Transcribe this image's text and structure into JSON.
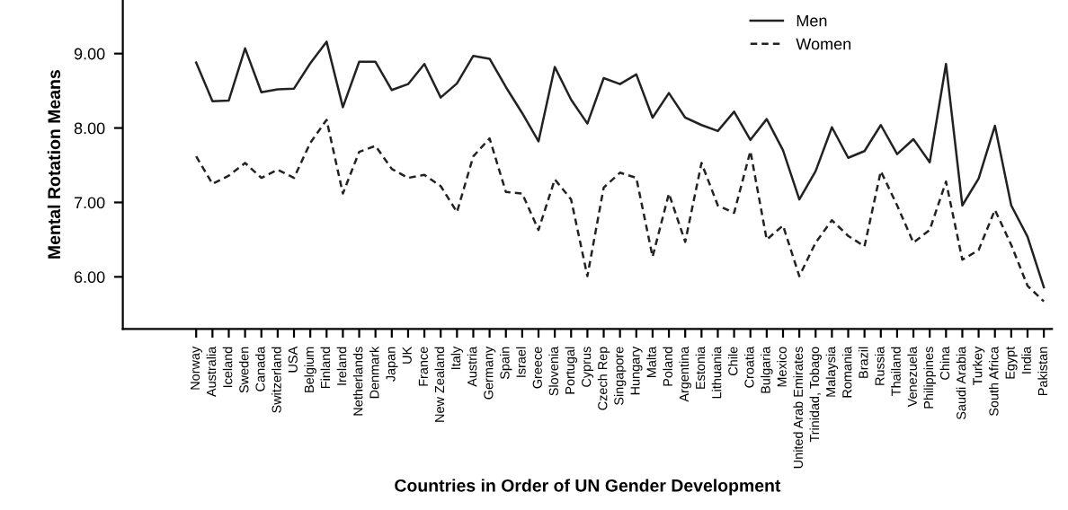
{
  "chart_data": {
    "type": "line",
    "xlabel": "Countries in Order of UN Gender Development",
    "ylabel": "Mental Rotation Means",
    "categories": [
      "Norway",
      "Australia",
      "Iceland",
      "Sweden",
      "Canada",
      "Switzerland",
      "USA",
      "Belgium",
      "Finland",
      "Ireland",
      "Netherlands",
      "Denmark",
      "Japan",
      "UK",
      "France",
      "New Zealand",
      "Italy",
      "Austria",
      "Germany",
      "Spain",
      "Israel",
      "Greece",
      "Slovenia",
      "Portugal",
      "Cyprus",
      "Czech Rep",
      "Singapore",
      "Hungary",
      "Malta",
      "Poland",
      "Argentina",
      "Estonia",
      "Lithuania",
      "Chile",
      "Croatia",
      "Bulgaria",
      "Mexico",
      "United Arab Emirates",
      "Trinidad, Tobago",
      "Malaysia",
      "Romania",
      "Brazil",
      "Russia",
      "Thailand",
      "Venezuela",
      "Philippines",
      "China",
      "Saudi Arabia",
      "Turkey",
      "South Africa",
      "Egypt",
      "India",
      "Pakistan"
    ],
    "series": [
      {
        "name": "Men",
        "color": "#222222",
        "line_style": "solid",
        "values": [
          8.88,
          8.36,
          8.37,
          9.07,
          8.48,
          8.52,
          8.53,
          8.87,
          9.16,
          8.28,
          8.89,
          8.89,
          8.51,
          8.59,
          8.86,
          8.41,
          8.6,
          8.97,
          8.93,
          8.55,
          8.2,
          7.82,
          8.82,
          8.38,
          8.06,
          8.67,
          8.59,
          8.72,
          8.14,
          8.47,
          8.14,
          8.04,
          7.96,
          8.22,
          7.84,
          8.12,
          7.7,
          7.04,
          7.42,
          8.01,
          7.6,
          7.69,
          8.04,
          7.65,
          7.85,
          7.54,
          8.86,
          6.96,
          7.32,
          8.03,
          6.96,
          6.54,
          5.86
        ]
      },
      {
        "name": "Women",
        "color": "#222222",
        "line_style": "dashed",
        "values": [
          7.62,
          7.25,
          7.36,
          7.53,
          7.33,
          7.44,
          7.33,
          7.8,
          8.11,
          7.12,
          7.68,
          7.76,
          7.45,
          7.33,
          7.37,
          7.22,
          6.87,
          7.62,
          7.86,
          7.14,
          7.12,
          6.63,
          7.31,
          7.04,
          6.01,
          7.2,
          7.4,
          7.33,
          6.27,
          7.12,
          6.47,
          7.53,
          6.96,
          6.86,
          7.69,
          6.5,
          6.69,
          6.01,
          6.46,
          6.76,
          6.55,
          6.41,
          7.42,
          6.96,
          6.46,
          6.63,
          7.28,
          6.23,
          6.36,
          6.9,
          6.43,
          5.88,
          5.67
        ]
      }
    ],
    "ylim": [
      5.3,
      9.72
    ],
    "yticks": [
      {
        "value": 6,
        "label": "6.00"
      },
      {
        "value": 7,
        "label": "7.00"
      },
      {
        "value": 8,
        "label": "8.00"
      },
      {
        "value": 9,
        "label": "9.00"
      }
    ],
    "grid": false,
    "legend": "top right",
    "marker": "none"
  }
}
